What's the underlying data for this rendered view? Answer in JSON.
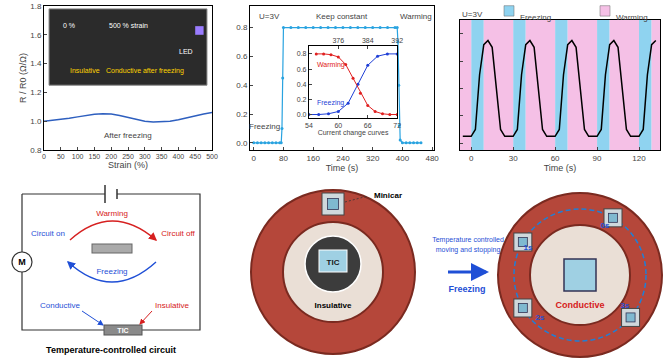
{
  "chart_data": [
    {
      "type": "line",
      "color": "#2e5fbf",
      "x": [
        0,
        25,
        50,
        75,
        100,
        125,
        150,
        175,
        200,
        225,
        250,
        275,
        300,
        325,
        350,
        375,
        400,
        425,
        450,
        475,
        500
      ],
      "values": [
        1.0,
        1.005,
        1.012,
        1.02,
        1.03,
        1.04,
        1.048,
        1.052,
        1.05,
        1.04,
        1.025,
        1.01,
        1.0,
        0.995,
        0.995,
        1.0,
        1.01,
        1.025,
        1.04,
        1.05,
        1.06
      ],
      "xlim": [
        0,
        500
      ],
      "xticks": [
        0,
        50,
        100,
        150,
        200,
        250,
        300,
        350,
        400,
        450,
        500
      ],
      "ylim": [
        0.8,
        1.8
      ],
      "yticks": [
        0.8,
        {
          "value": 1,
          "label": "1.0"
        },
        1.2,
        1.4,
        1.6,
        1.8
      ],
      "x_label": "Strain (%)",
      "y_label": "R / R0 (Ω/Ω)",
      "annotations": [
        "After freezing"
      ],
      "inset_texts": [
        "0 %",
        "500 % strain",
        "LED",
        "Insulative",
        "Conductive after freezing"
      ]
    },
    {
      "type": "line",
      "marker": "circle",
      "color": "#29a3e0",
      "x": [
        0,
        10,
        20,
        30,
        40,
        50,
        60,
        70,
        74,
        76,
        78,
        80,
        100,
        120,
        140,
        160,
        180,
        200,
        220,
        240,
        260,
        280,
        300,
        320,
        340,
        360,
        380,
        386,
        388,
        390,
        392,
        394,
        400,
        410,
        420,
        430,
        440,
        450
      ],
      "values": [
        0,
        0,
        0,
        0,
        0,
        0,
        0,
        0,
        0,
        0.1,
        0.45,
        0.8,
        0.8,
        0.8,
        0.8,
        0.8,
        0.8,
        0.8,
        0.8,
        0.8,
        0.8,
        0.8,
        0.8,
        0.8,
        0.8,
        0.8,
        0.8,
        0.8,
        0.7,
        0.4,
        0.12,
        0.02,
        0,
        0,
        0,
        0,
        0,
        0
      ],
      "xlim": [
        -10,
        485
      ],
      "xticks": [
        0,
        80,
        160,
        240,
        320,
        400,
        480
      ],
      "ylim": [
        -0.05,
        0.95
      ],
      "yticks": [
        {
          "value": 0,
          "label": "0.0"
        },
        0.2,
        0.4,
        0.6,
        0.8
      ],
      "x_label": "Time (s)",
      "annotations": [
        "U=3V",
        "Keep constant",
        "Warming",
        "Freezing"
      ],
      "inset": {
        "x_label": "Current change curves",
        "xlim": [
          54,
          72
        ],
        "xticks": [
          54,
          60,
          66,
          72
        ],
        "top_xlim": [
          368,
          392
        ],
        "top_xticks": [
          376,
          384,
          392
        ],
        "ylim": [
          -0.05,
          0.9
        ],
        "yticks": [
          {
            "value": 0,
            "label": "0.0"
          },
          0.2,
          0.4,
          0.6,
          0.8
        ],
        "series": [
          {
            "name": "Freezing",
            "color": "#1f3fd6",
            "marker": "circle",
            "x": [
              54,
              56,
              58,
              60,
              62,
              64,
              66,
              68,
              70,
              72
            ],
            "values": [
              0,
              0,
              0.01,
              0.04,
              0.15,
              0.4,
              0.65,
              0.77,
              0.8,
              0.8
            ]
          },
          {
            "name": "Warming",
            "color": "#e02020",
            "marker": "circle",
            "axis": "top",
            "x": [
              370,
              372,
              374,
              376,
              378,
              380,
              382,
              384,
              386,
              388,
              390,
              392
            ],
            "values": [
              0.8,
              0.8,
              0.79,
              0.76,
              0.66,
              0.48,
              0.28,
              0.12,
              0.04,
              0.01,
              0,
              0
            ]
          }
        ]
      }
    },
    {
      "type": "line",
      "color": "#000000",
      "x": [
        -6,
        -3,
        0,
        3,
        6,
        9,
        12,
        15,
        18,
        21,
        24,
        27,
        30,
        33,
        36,
        39,
        42,
        45,
        48,
        51,
        54,
        57,
        60,
        63,
        66,
        69,
        72,
        75,
        78,
        81,
        84,
        87,
        90,
        93,
        96,
        99,
        102,
        105,
        108,
        111,
        114,
        117,
        120,
        123,
        126,
        129,
        132
      ],
      "values": [
        0.05,
        0.05,
        0.05,
        0.1,
        0.5,
        0.72,
        0.75,
        0.7,
        0.4,
        0.1,
        0.05,
        0.05,
        0.05,
        0.1,
        0.5,
        0.72,
        0.75,
        0.7,
        0.4,
        0.1,
        0.05,
        0.05,
        0.05,
        0.1,
        0.5,
        0.72,
        0.75,
        0.7,
        0.4,
        0.1,
        0.05,
        0.05,
        0.05,
        0.1,
        0.5,
        0.72,
        0.75,
        0.7,
        0.4,
        0.1,
        0.05,
        0.05,
        0.05,
        0.1,
        0.5,
        0.72,
        0.75
      ],
      "xlim": [
        -8,
        135
      ],
      "xticks": [
        0,
        30,
        60,
        90,
        120
      ],
      "ylim": [
        -0.05,
        0.9
      ],
      "yticks": [
        0,
        0.2,
        0.4,
        0.6,
        0.8
      ],
      "tick_labels": "x",
      "x_label": "Time (s)",
      "annotations": [
        "U=3V"
      ],
      "bands": [
        {
          "name": "Freezing",
          "color": "#8fd3f0",
          "spans": [
            [
              0,
              9
            ],
            [
              30,
              39
            ],
            [
              60,
              69
            ],
            [
              90,
              99
            ],
            [
              120,
              129
            ]
          ]
        },
        {
          "name": "Warming",
          "color": "#f5c0e6",
          "spans": [
            [
              -8,
              0
            ],
            [
              9,
              30
            ],
            [
              39,
              60
            ],
            [
              69,
              90
            ],
            [
              99,
              120
            ],
            [
              129,
              135
            ]
          ]
        }
      ]
    }
  ],
  "circuit": {
    "title": "Temperature-controlled circuit",
    "motor": "M",
    "warming": "Warming",
    "circuit_on": "Circuit on",
    "circuit_off": "Circuit off",
    "freezing": "Freezing",
    "conductive": "Conductive",
    "insulative": "Insulative",
    "tic": "TIC"
  },
  "photos": {
    "before": {
      "minicar": "Minicar",
      "tic": "TIC",
      "state": "Insulative"
    },
    "arrow": {
      "top": [
        "Temperature controlled",
        "moving and stopping"
      ],
      "bottom": "Freezing"
    },
    "after": {
      "times": [
        "0s",
        "1s",
        "2s",
        "3s"
      ],
      "state": "Conductive"
    }
  }
}
